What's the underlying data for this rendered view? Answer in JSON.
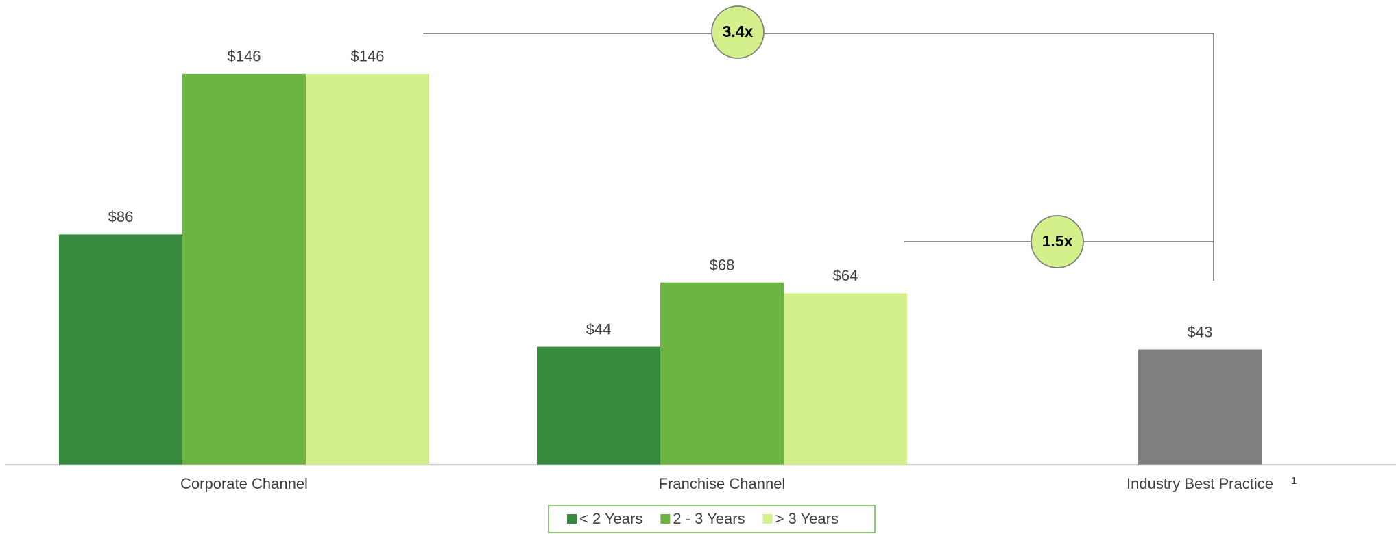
{
  "chart_data": {
    "type": "bar",
    "categories": [
      "Corporate Channel",
      "Franchise Channel",
      "Industry Best Practice"
    ],
    "category_superscripts": [
      null,
      null,
      "1"
    ],
    "series": [
      {
        "name": "< 2 Years",
        "color": "#358a3e",
        "values": [
          86,
          44,
          null
        ],
        "value_labels": [
          "$86",
          "$44",
          null
        ]
      },
      {
        "name": "2 - 3 Years",
        "color": "#6cb544",
        "values": [
          146,
          68,
          null
        ],
        "value_labels": [
          "$146",
          "$68",
          null
        ]
      },
      {
        "name": "> 3 Years",
        "color": "#d4f08a",
        "values": [
          146,
          64,
          null
        ],
        "value_labels": [
          "$146",
          "$64",
          null
        ]
      }
    ],
    "benchmark": {
      "category": 2,
      "color": "#7f7f7f",
      "value": 43,
      "value_label": "$43"
    },
    "annotations": [
      {
        "label": "3.4x"
      },
      {
        "label": "1.5x"
      }
    ],
    "ylim": [
      0,
      170
    ],
    "legend": "bottom"
  }
}
